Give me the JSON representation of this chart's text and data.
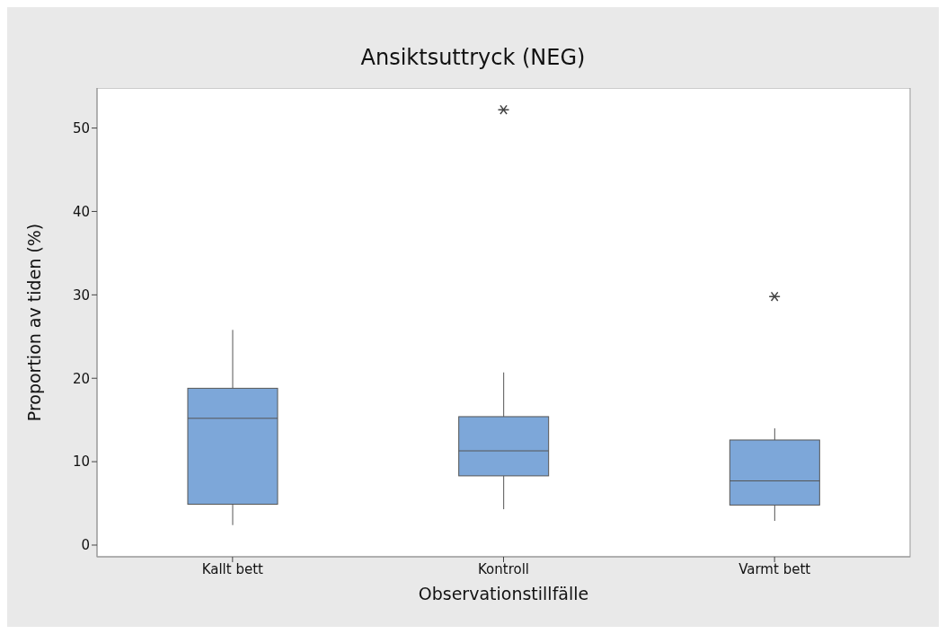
{
  "chart_data": {
    "type": "box",
    "title": "Ansiktsuttryck (NEG)",
    "xlabel": "Observationstillfälle",
    "ylabel": "Proportion av tiden (%)",
    "categories": [
      "Kallt bett",
      "Kontroll",
      "Varmt bett"
    ],
    "boxes": [
      {
        "low": 2.4,
        "q1": 4.9,
        "median": 15.2,
        "q3": 18.8,
        "high": 25.8
      },
      {
        "low": 4.3,
        "q1": 8.3,
        "median": 11.3,
        "q3": 15.4,
        "high": 20.7,
        "outliers": [
          52.2
        ]
      },
      {
        "low": 2.9,
        "q1": 4.8,
        "median": 7.7,
        "q3": 12.6,
        "high": 14.0,
        "outliers": [
          29.8
        ]
      }
    ],
    "color": "#7da7d9",
    "ylim": [
      -1.4,
      54.8
    ],
    "yticks": [
      0,
      10,
      20,
      30,
      40,
      50
    ],
    "marker": "star"
  }
}
